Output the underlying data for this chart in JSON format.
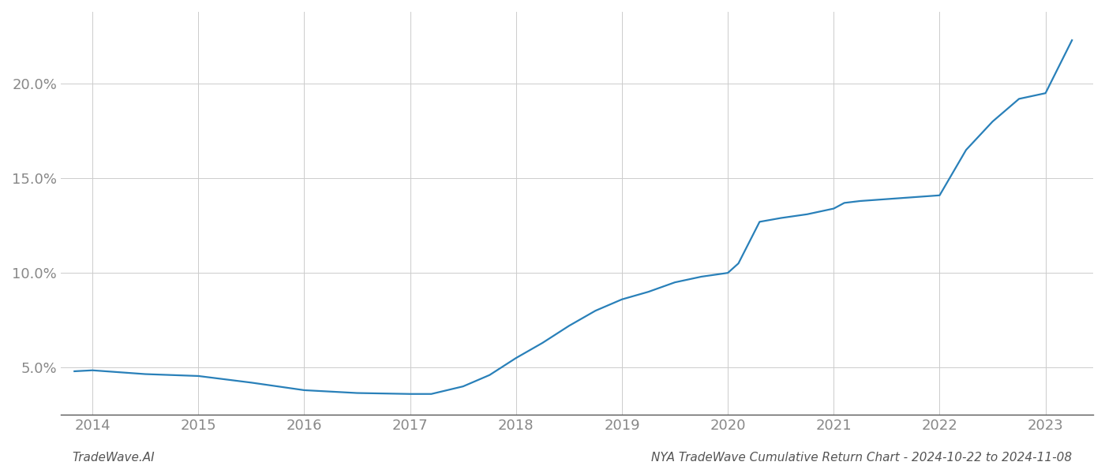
{
  "x_years": [
    2013.83,
    2014.0,
    2014.5,
    2015.0,
    2015.5,
    2016.0,
    2016.5,
    2017.0,
    2017.2,
    2017.5,
    2017.75,
    2018.0,
    2018.25,
    2018.5,
    2018.75,
    2019.0,
    2019.25,
    2019.5,
    2019.75,
    2020.0,
    2020.1,
    2020.3,
    2020.5,
    2020.75,
    2021.0,
    2021.1,
    2021.25,
    2021.5,
    2021.75,
    2022.0,
    2022.25,
    2022.5,
    2022.75,
    2023.0,
    2023.25
  ],
  "y_values": [
    4.8,
    4.85,
    4.65,
    4.55,
    4.2,
    3.8,
    3.65,
    3.6,
    3.6,
    4.0,
    4.6,
    5.5,
    6.3,
    7.2,
    8.0,
    8.6,
    9.0,
    9.5,
    9.8,
    10.0,
    10.5,
    12.7,
    12.9,
    13.1,
    13.4,
    13.7,
    13.8,
    13.9,
    14.0,
    14.1,
    16.5,
    18.0,
    19.2,
    19.5,
    22.3
  ],
  "line_color": "#2980b9",
  "line_width": 1.6,
  "background_color": "#ffffff",
  "grid_color": "#cccccc",
  "grid_linewidth": 0.7,
  "footer_left": "TradeWave.AI",
  "footer_right": "NYA TradeWave Cumulative Return Chart - 2024-10-22 to 2024-11-08",
  "x_ticks": [
    2014,
    2015,
    2016,
    2017,
    2018,
    2019,
    2020,
    2021,
    2022,
    2023
  ],
  "y_ticks": [
    5.0,
    10.0,
    15.0,
    20.0
  ],
  "y_tick_labels": [
    "5.0%",
    "10.0%",
    "15.0%",
    "20.0%"
  ],
  "xlim": [
    2013.7,
    2023.45
  ],
  "ylim": [
    2.5,
    23.8
  ],
  "footer_fontsize": 11,
  "tick_fontsize": 13,
  "tick_color": "#888888",
  "spine_color": "#555555"
}
